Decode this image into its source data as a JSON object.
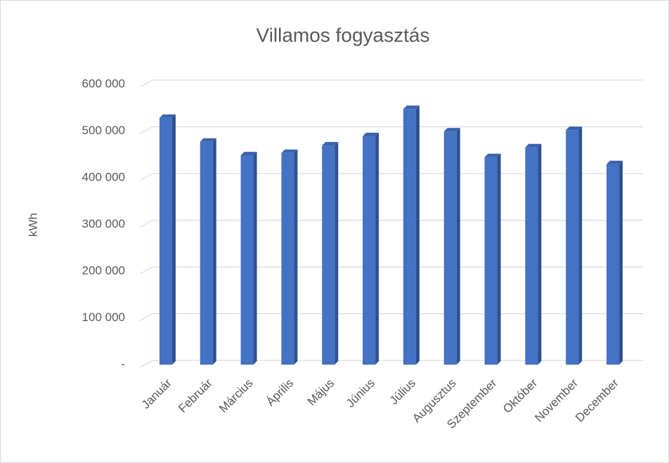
{
  "chart_data": {
    "type": "bar",
    "title": "Villamos fogyasztás",
    "y_label": "kWh",
    "categories": [
      "Január",
      "Február",
      "Március",
      "Április",
      "Május",
      "Június",
      "Július",
      "Augusztus",
      "Szeptember",
      "Október",
      "November",
      "December"
    ],
    "values": [
      528000,
      477000,
      448000,
      453000,
      469000,
      489000,
      547000,
      499000,
      444000,
      465000,
      502000,
      429000
    ],
    "color": "#4472c4",
    "ylim": [
      0,
      600000
    ],
    "yticks": [
      {
        "value": 0,
        "label": "-"
      },
      {
        "value": 100000,
        "label": "100 000"
      },
      {
        "value": 200000,
        "label": "200 000"
      },
      {
        "value": 300000,
        "label": "300 000"
      },
      {
        "value": 400000,
        "label": "400 000"
      },
      {
        "value": 500000,
        "label": "500 000"
      },
      {
        "value": 600000,
        "label": "600 000"
      }
    ],
    "grid": true
  }
}
